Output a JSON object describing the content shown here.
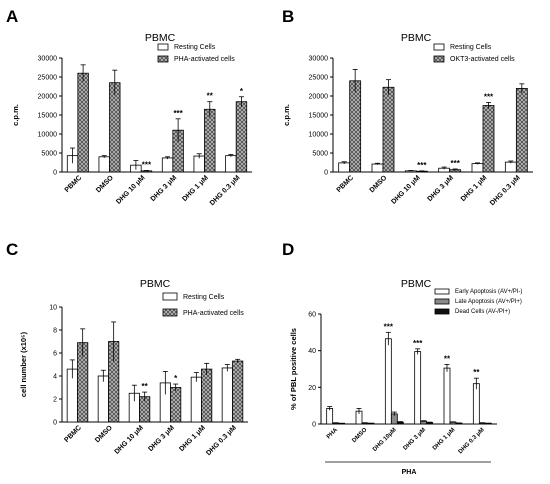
{
  "chart_data": [
    {
      "panel": "A",
      "type": "bar",
      "title": "PBMC",
      "ylabel": "c.p.m.",
      "ylim": [
        0,
        30000
      ],
      "yticks": [
        "0",
        "5000",
        "10000",
        "15000",
        "20000",
        "25000",
        "30000"
      ],
      "categories": [
        "PBMC",
        "DMSO",
        "DHG 10 μM",
        "DHG 3 μM",
        "DHG 1 μM",
        "DHG 0.3 μM"
      ],
      "series": [
        {
          "name": "Resting Cells",
          "pattern": "white",
          "values": [
            4300,
            4000,
            1800,
            3700,
            4200,
            4300
          ],
          "errors": [
            2000,
            300,
            1200,
            300,
            600,
            300
          ]
        },
        {
          "name": "PHA-activated cells",
          "pattern": "cross",
          "values": [
            26000,
            23500,
            300,
            11000,
            16500,
            18500
          ],
          "errors": [
            2200,
            3300,
            100,
            3000,
            2000,
            1300
          ]
        }
      ],
      "annotations": [
        "",
        "",
        "***",
        "***",
        "**",
        "*"
      ]
    },
    {
      "panel": "B",
      "type": "bar",
      "title": "PBMC",
      "ylabel": "c.p.m.",
      "ylim": [
        0,
        30000
      ],
      "yticks": [
        "0",
        "5000",
        "10000",
        "15000",
        "20000",
        "25000",
        "30000"
      ],
      "categories": [
        "PBMC",
        "DMSO",
        "DHG 10 μM",
        "DHG 3 μM",
        "DHG 1 μM",
        "DHG 0.3 μM"
      ],
      "series": [
        {
          "name": "Resting Cells",
          "pattern": "white",
          "values": [
            2400,
            2100,
            300,
            1000,
            2200,
            2600
          ],
          "errors": [
            300,
            200,
            100,
            300,
            200,
            300
          ]
        },
        {
          "name": "OKT3-activated cells",
          "pattern": "cross",
          "values": [
            24000,
            22300,
            200,
            600,
            17500,
            22000
          ],
          "errors": [
            3000,
            2000,
            100,
            200,
            800,
            1200
          ]
        }
      ],
      "annotations": [
        "",
        "",
        "***",
        "***",
        "***",
        ""
      ]
    },
    {
      "panel": "C",
      "type": "bar",
      "title": "PBMC",
      "ylabel": "cell number (x10⁵)",
      "ylim": [
        0,
        10
      ],
      "yticks": [
        "0",
        "2",
        "4",
        "6",
        "8",
        "10"
      ],
      "categories": [
        "PBMC",
        "DMSO",
        "DHG 10 μM",
        "DHG 3 μM",
        "DHG 1 μM",
        "DHG 0.3 μM"
      ],
      "series": [
        {
          "name": "Resting Cells",
          "pattern": "white",
          "values": [
            4.6,
            4.0,
            2.5,
            3.4,
            3.9,
            4.7
          ],
          "errors": [
            0.8,
            0.5,
            0.7,
            1.0,
            0.4,
            0.3
          ]
        },
        {
          "name": "PHA-activated cells",
          "pattern": "cross",
          "values": [
            6.9,
            7.0,
            2.2,
            3.0,
            4.6,
            5.3
          ],
          "errors": [
            1.2,
            1.7,
            0.4,
            0.3,
            0.5,
            0.15
          ]
        }
      ],
      "annotations": [
        "",
        "",
        "**",
        "*",
        "",
        ""
      ]
    },
    {
      "panel": "D",
      "type": "bar",
      "title": "PBMC",
      "ylabel": "% of PBL positive cells",
      "ylim": [
        0,
        60
      ],
      "yticks": [
        "0",
        "20",
        "40",
        "60"
      ],
      "categories": [
        "PHA",
        "DMSO",
        "DHG 10μM",
        "DHG 3 μM",
        "DHG 1 μM",
        "DHG 0.3 μM"
      ],
      "group_label": "PHA",
      "series": [
        {
          "name": "Early Apoptosis (AV+/PI-)",
          "pattern": "white",
          "values": [
            8.5,
            7.0,
            46.5,
            39.5,
            30.5,
            22.0
          ],
          "errors": [
            1.0,
            1.5,
            3.5,
            1.5,
            2.0,
            3.0
          ]
        },
        {
          "name": "Late Apoptosis (AV+/PI+)",
          "pattern": "gray",
          "values": [
            0.5,
            0.5,
            5.5,
            1.5,
            1.0,
            0.5
          ],
          "errors": [
            0.2,
            0.2,
            1.0,
            0.3,
            0.2,
            0.2
          ]
        },
        {
          "name": "Dead Cells (AV-/PI+)",
          "pattern": "black",
          "values": [
            0.2,
            0.3,
            1.0,
            0.8,
            0.5,
            0.3
          ],
          "errors": [
            0.1,
            0.1,
            0.3,
            0.2,
            0.1,
            0.1
          ]
        }
      ],
      "annotations": [
        "",
        "",
        "***",
        "***",
        "**",
        "**"
      ]
    }
  ]
}
